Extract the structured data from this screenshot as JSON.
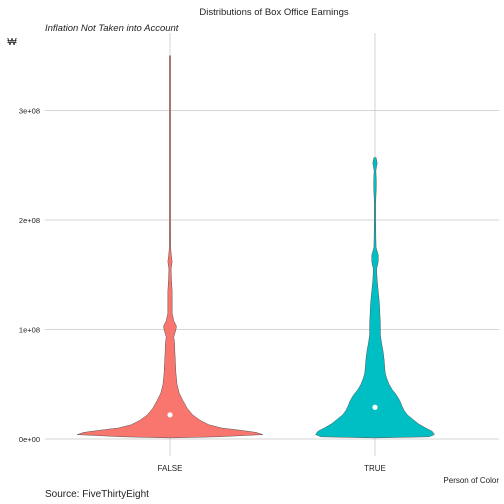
{
  "chart_data": {
    "type": "violin",
    "title": "Distributions of Box Office Earnings",
    "subtitle": "Inflation Not Taken into Account",
    "ylabel": "₩",
    "xlabel": "Person of Color",
    "caption": "Source: FiveThirtyEight",
    "categories": [
      "FALSE",
      "TRUE"
    ],
    "ylim": [
      -15000000,
      370000000
    ],
    "yticks": [
      0,
      100000000,
      200000000,
      300000000
    ],
    "ytick_labels": [
      "0e+00",
      "1e+08",
      "2e+08",
      "3e+08"
    ],
    "grid": true,
    "series": [
      {
        "category": "FALSE",
        "color": "#F8766D",
        "median": 22000000,
        "min": 1000000,
        "max": 350000000,
        "density_profile": [
          [
            1000000,
            0.01
          ],
          [
            2000000,
            0.44
          ],
          [
            4000000,
            0.86
          ],
          [
            6000000,
            0.8
          ],
          [
            8000000,
            0.65
          ],
          [
            10000000,
            0.48
          ],
          [
            13000000,
            0.36
          ],
          [
            17000000,
            0.28
          ],
          [
            22000000,
            0.21
          ],
          [
            28000000,
            0.16
          ],
          [
            35000000,
            0.12
          ],
          [
            42000000,
            0.085
          ],
          [
            50000000,
            0.065
          ],
          [
            60000000,
            0.055
          ],
          [
            70000000,
            0.05
          ],
          [
            80000000,
            0.045
          ],
          [
            88000000,
            0.042
          ],
          [
            93000000,
            0.035
          ],
          [
            100000000,
            0.055
          ],
          [
            103000000,
            0.06
          ],
          [
            108000000,
            0.035
          ],
          [
            115000000,
            0.02
          ],
          [
            125000000,
            0.02
          ],
          [
            135000000,
            0.02
          ],
          [
            145000000,
            0.014
          ],
          [
            155000000,
            0.01
          ],
          [
            162000000,
            0.02
          ],
          [
            168000000,
            0.012
          ],
          [
            175000000,
            0.006
          ],
          [
            185000000,
            0.006
          ],
          [
            200000000,
            0.004
          ],
          [
            250000000,
            0.003
          ],
          [
            300000000,
            0.003
          ],
          [
            350000000,
            0.003
          ]
        ]
      },
      {
        "category": "TRUE",
        "color": "#00BFC4",
        "median": 29000000,
        "min": 1000000,
        "max": 257000000,
        "density_profile": [
          [
            1000000,
            0.01
          ],
          [
            2000000,
            0.5
          ],
          [
            4000000,
            0.55
          ],
          [
            7000000,
            0.53
          ],
          [
            10000000,
            0.47
          ],
          [
            14000000,
            0.4
          ],
          [
            18000000,
            0.35
          ],
          [
            22000000,
            0.3
          ],
          [
            26000000,
            0.27
          ],
          [
            30000000,
            0.25
          ],
          [
            35000000,
            0.23
          ],
          [
            40000000,
            0.2
          ],
          [
            45000000,
            0.16
          ],
          [
            50000000,
            0.13
          ],
          [
            55000000,
            0.11
          ],
          [
            60000000,
            0.095
          ],
          [
            65000000,
            0.09
          ],
          [
            72000000,
            0.085
          ],
          [
            80000000,
            0.075
          ],
          [
            88000000,
            0.06
          ],
          [
            95000000,
            0.05
          ],
          [
            105000000,
            0.05
          ],
          [
            115000000,
            0.045
          ],
          [
            125000000,
            0.04
          ],
          [
            135000000,
            0.03
          ],
          [
            145000000,
            0.02
          ],
          [
            155000000,
            0.015
          ],
          [
            162000000,
            0.03
          ],
          [
            168000000,
            0.03
          ],
          [
            175000000,
            0.01
          ],
          [
            185000000,
            0.008
          ],
          [
            200000000,
            0.006
          ],
          [
            215000000,
            0.006
          ],
          [
            230000000,
            0.012
          ],
          [
            236000000,
            0.012
          ],
          [
            245000000,
            0.008
          ],
          [
            252000000,
            0.02
          ],
          [
            257000000,
            0.01
          ]
        ]
      }
    ]
  }
}
